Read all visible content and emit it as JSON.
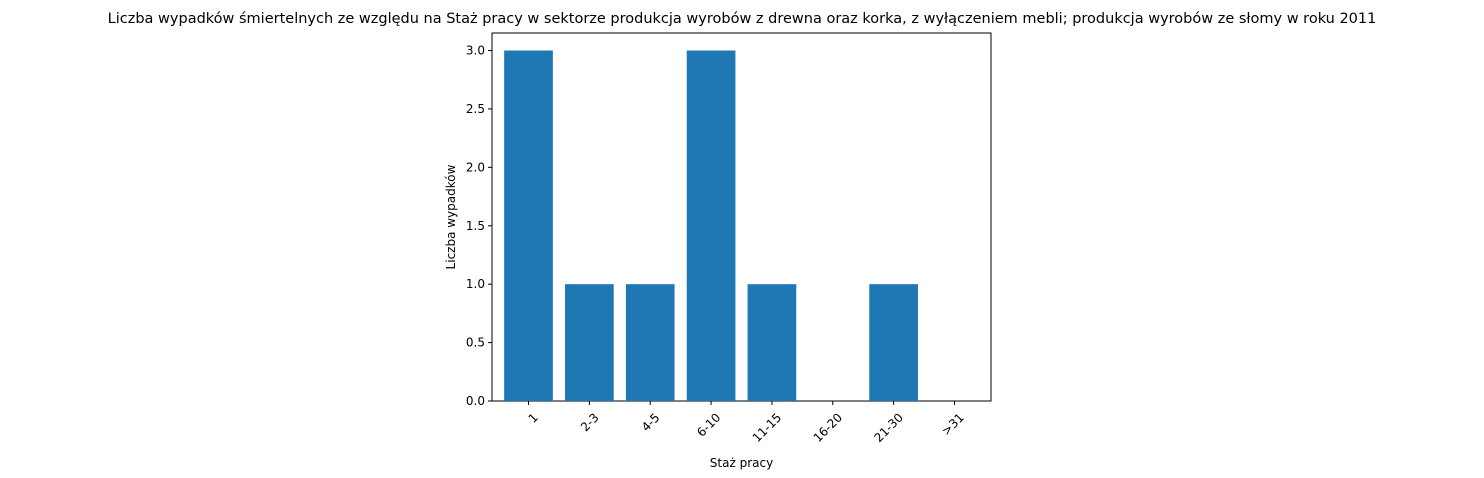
{
  "chart_data": {
    "type": "bar",
    "title": "Liczba wypadków śmiertelnych ze względu na Staż pracy w sektorze produkcja wyrobów z drewna oraz korka, z wyłączeniem mebli; produkcja wyrobów ze słomy w roku 2011",
    "xlabel": "Staż pracy",
    "ylabel": "Liczba wypadków",
    "categories": [
      "1",
      "2-3",
      "4-5",
      "6-10",
      "11-15",
      "16-20",
      "21-30",
      ">31"
    ],
    "values": [
      3,
      1,
      1,
      3,
      1,
      0,
      1,
      0
    ],
    "ylim": [
      0,
      3.15
    ],
    "yticks": [
      "0.0",
      "0.5",
      "1.0",
      "1.5",
      "2.0",
      "2.5",
      "3.0"
    ],
    "xtick_rotation": "45",
    "bar_color": "#1f77b4",
    "grid": false,
    "legend": "none"
  }
}
